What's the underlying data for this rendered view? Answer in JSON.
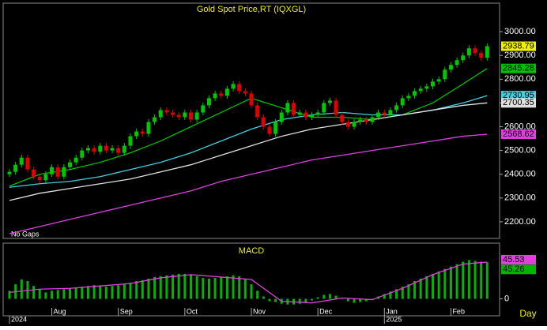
{
  "chart_data": {
    "type": "candlestick",
    "title": "Gold  Spot  Price,RT  (IQXGL)",
    "note": "No Gaps",
    "period": "Day",
    "ylim": [
      2130,
      3120
    ],
    "yticks": [
      {
        "value": 2200,
        "label": "2200.00"
      },
      {
        "value": 2300,
        "label": "2300.00"
      },
      {
        "value": 2400,
        "label": "2400.00"
      },
      {
        "value": 2500,
        "label": "2500.00"
      },
      {
        "value": 2600,
        "label": "2600.00"
      },
      {
        "value": 2700,
        "label": "2700.00"
      },
      {
        "value": 2800,
        "label": "2800.00"
      },
      {
        "value": 2900,
        "label": "2900.00"
      },
      {
        "value": 3000,
        "label": "3000.00"
      }
    ],
    "xticks": [
      {
        "value": 7,
        "label": "Aug"
      },
      {
        "value": 18,
        "label": "Sep"
      },
      {
        "value": 29,
        "label": "Oct"
      },
      {
        "value": 40,
        "label": "Nov"
      },
      {
        "value": 51,
        "label": "Dec"
      },
      {
        "value": 62,
        "label": "Jan"
      },
      {
        "value": 73,
        "label": "Feb"
      }
    ],
    "year_ticks": [
      {
        "value": 0,
        "label": "2024"
      },
      {
        "value": 62,
        "label": "2025"
      }
    ],
    "up_color": "#00c800",
    "down_color": "#e00000",
    "last_price": {
      "value": 2938.79,
      "label": "2938.79",
      "color": "#f0f000"
    },
    "candles": [
      [
        2400,
        2422,
        2388,
        2410
      ],
      [
        2410,
        2452,
        2398,
        2440
      ],
      [
        2440,
        2482,
        2428,
        2470
      ],
      [
        2470,
        2482,
        2408,
        2420
      ],
      [
        2420,
        2432,
        2378,
        2390
      ],
      [
        2390,
        2402,
        2363,
        2375
      ],
      [
        2375,
        2412,
        2363,
        2400
      ],
      [
        2400,
        2442,
        2388,
        2430
      ],
      [
        2430,
        2442,
        2378,
        2390
      ],
      [
        2390,
        2442,
        2378,
        2430
      ],
      [
        2430,
        2462,
        2418,
        2450
      ],
      [
        2450,
        2482,
        2438,
        2470
      ],
      [
        2470,
        2512,
        2458,
        2500
      ],
      [
        2500,
        2522,
        2488,
        2510
      ],
      [
        2510,
        2522,
        2483,
        2495
      ],
      [
        2495,
        2532,
        2483,
        2520
      ],
      [
        2520,
        2532,
        2488,
        2500
      ],
      [
        2500,
        2522,
        2488,
        2510
      ],
      [
        2510,
        2522,
        2478,
        2490
      ],
      [
        2490,
        2532,
        2478,
        2520
      ],
      [
        2520,
        2572,
        2508,
        2560
      ],
      [
        2560,
        2592,
        2548,
        2580
      ],
      [
        2580,
        2592,
        2558,
        2570
      ],
      [
        2570,
        2632,
        2558,
        2620
      ],
      [
        2620,
        2652,
        2608,
        2640
      ],
      [
        2640,
        2682,
        2628,
        2670
      ],
      [
        2670,
        2682,
        2648,
        2660
      ],
      [
        2660,
        2672,
        2638,
        2650
      ],
      [
        2650,
        2662,
        2628,
        2640
      ],
      [
        2640,
        2672,
        2628,
        2660
      ],
      [
        2660,
        2672,
        2618,
        2630
      ],
      [
        2630,
        2672,
        2618,
        2660
      ],
      [
        2660,
        2702,
        2648,
        2690
      ],
      [
        2690,
        2732,
        2678,
        2720
      ],
      [
        2720,
        2752,
        2708,
        2740
      ],
      [
        2740,
        2752,
        2718,
        2730
      ],
      [
        2730,
        2772,
        2718,
        2760
      ],
      [
        2760,
        2792,
        2748,
        2780
      ],
      [
        2780,
        2792,
        2738,
        2750
      ],
      [
        2750,
        2762,
        2728,
        2740
      ],
      [
        2740,
        2752,
        2678,
        2690
      ],
      [
        2690,
        2702,
        2628,
        2640
      ],
      [
        2640,
        2652,
        2588,
        2600
      ],
      [
        2600,
        2612,
        2558,
        2570
      ],
      [
        2570,
        2632,
        2558,
        2620
      ],
      [
        2620,
        2672,
        2608,
        2660
      ],
      [
        2660,
        2712,
        2648,
        2700
      ],
      [
        2700,
        2712,
        2638,
        2650
      ],
      [
        2650,
        2672,
        2638,
        2660
      ],
      [
        2660,
        2672,
        2628,
        2640
      ],
      [
        2640,
        2662,
        2628,
        2650
      ],
      [
        2650,
        2672,
        2638,
        2660
      ],
      [
        2660,
        2712,
        2648,
        2700
      ],
      [
        2700,
        2722,
        2688,
        2710
      ],
      [
        2710,
        2722,
        2638,
        2650
      ],
      [
        2650,
        2662,
        2608,
        2620
      ],
      [
        2620,
        2632,
        2588,
        2600
      ],
      [
        2600,
        2632,
        2588,
        2620
      ],
      [
        2620,
        2642,
        2608,
        2630
      ],
      [
        2630,
        2642,
        2608,
        2620
      ],
      [
        2620,
        2652,
        2608,
        2640
      ],
      [
        2640,
        2672,
        2628,
        2660
      ],
      [
        2660,
        2672,
        2638,
        2650
      ],
      [
        2650,
        2682,
        2638,
        2670
      ],
      [
        2670,
        2702,
        2658,
        2690
      ],
      [
        2690,
        2732,
        2678,
        2720
      ],
      [
        2720,
        2742,
        2708,
        2730
      ],
      [
        2730,
        2762,
        2718,
        2750
      ],
      [
        2750,
        2772,
        2738,
        2760
      ],
      [
        2760,
        2782,
        2748,
        2770
      ],
      [
        2770,
        2802,
        2758,
        2790
      ],
      [
        2790,
        2812,
        2778,
        2800
      ],
      [
        2800,
        2852,
        2788,
        2840
      ],
      [
        2840,
        2872,
        2828,
        2860
      ],
      [
        2860,
        2892,
        2848,
        2880
      ],
      [
        2880,
        2912,
        2868,
        2900
      ],
      [
        2900,
        2942,
        2888,
        2930
      ],
      [
        2930,
        2942,
        2898,
        2910
      ],
      [
        2910,
        2922,
        2878,
        2890
      ],
      [
        2890,
        2950,
        2878,
        2938.79
      ]
    ],
    "ma_x": [
      0,
      5,
      10,
      15,
      20,
      25,
      30,
      35,
      40,
      45,
      50,
      55,
      60,
      65,
      70,
      75,
      79
    ],
    "series": [
      {
        "color": "#00c000",
        "values": [
          2350,
          2400,
          2420,
          2450,
          2490,
          2540,
          2600,
          2660,
          2720,
          2680,
          2640,
          2640,
          2630,
          2650,
          2700,
          2780,
          2845.28
        ],
        "last_label": "2845.28"
      },
      {
        "color": "#40d0e0",
        "values": [
          2345,
          2360,
          2370,
          2390,
          2420,
          2450,
          2490,
          2540,
          2590,
          2630,
          2650,
          2660,
          2650,
          2650,
          2670,
          2700,
          2730.95
        ],
        "last_label": "2730.95"
      },
      {
        "color": "#e0e0e0",
        "values": [
          2290,
          2320,
          2340,
          2360,
          2380,
          2410,
          2440,
          2480,
          2520,
          2560,
          2590,
          2610,
          2630,
          2650,
          2670,
          2690,
          2700.35
        ],
        "last_label": "2700.35"
      },
      {
        "color": "#e040e0",
        "values": [
          2150,
          2180,
          2210,
          2240,
          2270,
          2300,
          2330,
          2370,
          2400,
          2430,
          2460,
          2480,
          2500,
          2520,
          2540,
          2560,
          2568.62
        ],
        "last_label": "2568.62"
      }
    ],
    "macd": {
      "title": "MACD",
      "ylim": [
        -19,
        67
      ],
      "yticks": [
        0
      ],
      "histogram": {
        "color": "#00b400",
        "last_label": "45.26",
        "values": [
          10,
          18,
          24,
          22,
          16,
          12,
          8,
          10,
          11,
          12,
          13,
          14,
          15,
          16,
          17,
          16,
          15,
          16,
          17,
          18,
          20,
          22,
          23,
          25,
          27,
          28,
          29,
          30,
          31,
          31,
          30,
          28,
          26,
          25,
          26,
          27,
          28,
          29,
          28,
          25,
          18,
          10,
          3,
          -3,
          -4,
          -6,
          -7,
          -7,
          -6,
          -5,
          -2,
          2,
          5,
          6,
          4,
          1,
          -3,
          -5,
          -4,
          -3,
          0,
          3,
          6,
          9,
          12,
          15,
          18,
          22,
          25,
          28,
          31,
          34,
          37,
          40,
          43,
          46,
          48,
          47,
          46,
          45.26
        ]
      },
      "signal": {
        "color": "#e040e0",
        "last_label": "45.53",
        "values": [
          8,
          12,
          13,
          16,
          19,
          26,
          30,
          27,
          24,
          -3,
          -5,
          1,
          -1,
          13,
          30,
          43,
          45.53
        ]
      }
    }
  }
}
